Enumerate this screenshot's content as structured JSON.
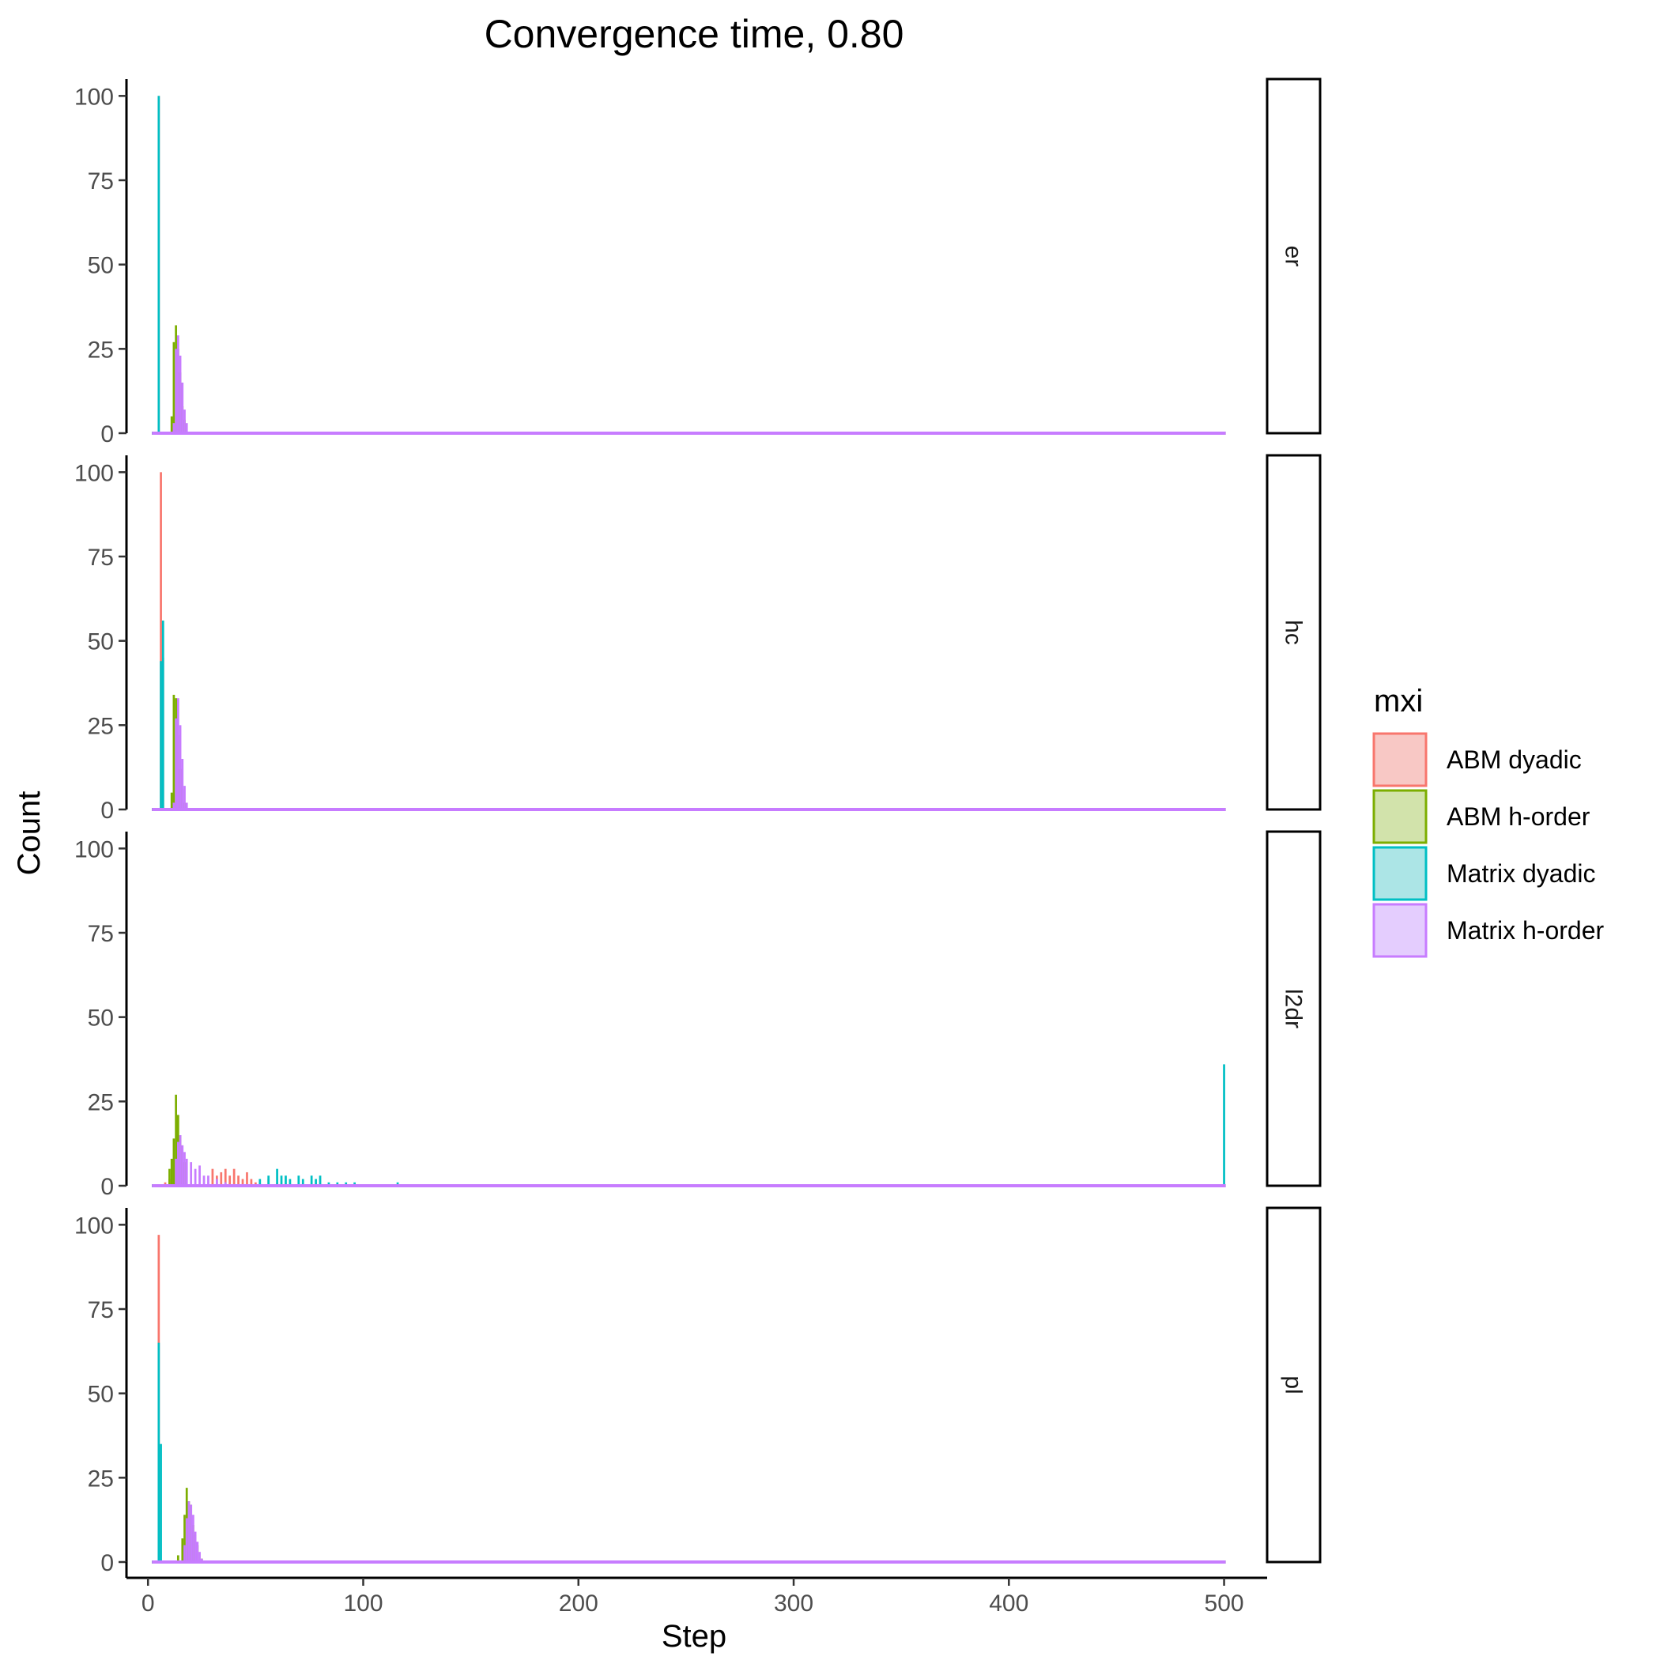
{
  "chart_data": {
    "type": "bar",
    "title": "Convergence time, 0.80",
    "xlabel": "Step",
    "ylabel": "Count",
    "xlim": [
      -10,
      520
    ],
    "ylim": [
      0,
      105
    ],
    "x_ticks": [
      0,
      100,
      200,
      300,
      400,
      500
    ],
    "y_ticks": [
      0,
      25,
      50,
      75,
      100
    ],
    "grid": false,
    "facet_variable": "",
    "legend": {
      "title": "mxi",
      "position": "right",
      "entries": [
        {
          "name": "ABM dyadic",
          "color": "#F8766D",
          "fill": "#F8C8C5"
        },
        {
          "name": "ABM h-order",
          "color": "#7CAE00",
          "fill": "#D2E3AB"
        },
        {
          "name": "Matrix dyadic",
          "color": "#00BFC4",
          "fill": "#ACE5E6"
        },
        {
          "name": "Matrix h-order",
          "color": "#C77CFF",
          "fill": "#E4CDFE"
        }
      ]
    },
    "panels": [
      {
        "label": "er",
        "series": [
          {
            "name": "ABM dyadic",
            "bins": [
              [
                5,
                100
              ]
            ]
          },
          {
            "name": "ABM h-order",
            "bins": [
              [
                11,
                5
              ],
              [
                12,
                27
              ],
              [
                13,
                32
              ],
              [
                14,
                25
              ],
              [
                15,
                18
              ],
              [
                16,
                8
              ],
              [
                17,
                4
              ]
            ]
          },
          {
            "name": "Matrix dyadic",
            "bins": [
              [
                5,
                100
              ]
            ]
          },
          {
            "name": "Matrix h-order",
            "bins": [
              [
                12,
                3
              ],
              [
                13,
                25
              ],
              [
                14,
                29
              ],
              [
                15,
                23
              ],
              [
                16,
                15
              ],
              [
                17,
                7
              ],
              [
                18,
                3
              ]
            ]
          }
        ]
      },
      {
        "label": "hc",
        "series": [
          {
            "name": "ABM dyadic",
            "bins": [
              [
                6,
                100
              ],
              [
                7,
                45
              ]
            ]
          },
          {
            "name": "ABM h-order",
            "bins": [
              [
                11,
                5
              ],
              [
                12,
                34
              ],
              [
                13,
                33
              ],
              [
                14,
                22
              ],
              [
                15,
                12
              ],
              [
                16,
                6
              ],
              [
                17,
                2
              ]
            ]
          },
          {
            "name": "Matrix dyadic",
            "bins": [
              [
                6,
                44
              ],
              [
                7,
                56
              ]
            ]
          },
          {
            "name": "Matrix h-order",
            "bins": [
              [
                12,
                2
              ],
              [
                13,
                27
              ],
              [
                14,
                33
              ],
              [
                15,
                25
              ],
              [
                16,
                15
              ],
              [
                17,
                7
              ],
              [
                18,
                2
              ]
            ]
          }
        ]
      },
      {
        "label": "l2dr",
        "series": [
          {
            "name": "ABM dyadic",
            "bins": [
              [
                8,
                1
              ],
              [
                10,
                2
              ],
              [
                30,
                5
              ],
              [
                32,
                3
              ],
              [
                34,
                4
              ],
              [
                36,
                5
              ],
              [
                38,
                3
              ],
              [
                40,
                5
              ],
              [
                42,
                3
              ],
              [
                44,
                2
              ],
              [
                46,
                4
              ],
              [
                48,
                2
              ],
              [
                50,
                1
              ],
              [
                56,
                2
              ],
              [
                60,
                1
              ]
            ]
          },
          {
            "name": "ABM h-order",
            "bins": [
              [
                10,
                5
              ],
              [
                11,
                8
              ],
              [
                12,
                14
              ],
              [
                13,
                27
              ],
              [
                14,
                21
              ],
              [
                15,
                15
              ],
              [
                16,
                10
              ],
              [
                17,
                7
              ]
            ]
          },
          {
            "name": "Matrix dyadic",
            "bins": [
              [
                52,
                2
              ],
              [
                56,
                3
              ],
              [
                60,
                5
              ],
              [
                62,
                3
              ],
              [
                64,
                3
              ],
              [
                66,
                2
              ],
              [
                70,
                3
              ],
              [
                72,
                2
              ],
              [
                76,
                3
              ],
              [
                78,
                2
              ],
              [
                80,
                3
              ],
              [
                84,
                1
              ],
              [
                88,
                1
              ],
              [
                92,
                1
              ],
              [
                96,
                1
              ],
              [
                116,
                1
              ],
              [
                500,
                36
              ]
            ]
          },
          {
            "name": "Matrix h-order",
            "bins": [
              [
                13,
                8
              ],
              [
                14,
                13
              ],
              [
                15,
                15
              ],
              [
                16,
                12
              ],
              [
                17,
                10
              ],
              [
                18,
                8
              ],
              [
                20,
                7
              ],
              [
                22,
                5
              ],
              [
                24,
                6
              ],
              [
                26,
                3
              ],
              [
                28,
                3
              ],
              [
                32,
                2
              ],
              [
                36,
                1
              ]
            ]
          }
        ]
      },
      {
        "label": "pl",
        "series": [
          {
            "name": "ABM dyadic",
            "bins": [
              [
                5,
                97
              ]
            ]
          },
          {
            "name": "ABM h-order",
            "bins": [
              [
                14,
                2
              ],
              [
                16,
                7
              ],
              [
                17,
                14
              ],
              [
                18,
                22
              ],
              [
                19,
                18
              ],
              [
                20,
                17
              ],
              [
                21,
                11
              ],
              [
                22,
                8
              ],
              [
                23,
                5
              ],
              [
                25,
                1
              ]
            ]
          },
          {
            "name": "Matrix dyadic",
            "bins": [
              [
                5,
                65
              ],
              [
                6,
                35
              ]
            ]
          },
          {
            "name": "Matrix h-order",
            "bins": [
              [
                17,
                5
              ],
              [
                18,
                13
              ],
              [
                19,
                18
              ],
              [
                20,
                17
              ],
              [
                21,
                14
              ],
              [
                22,
                9
              ],
              [
                23,
                6
              ],
              [
                24,
                3
              ],
              [
                25,
                1
              ]
            ]
          }
        ]
      }
    ]
  }
}
